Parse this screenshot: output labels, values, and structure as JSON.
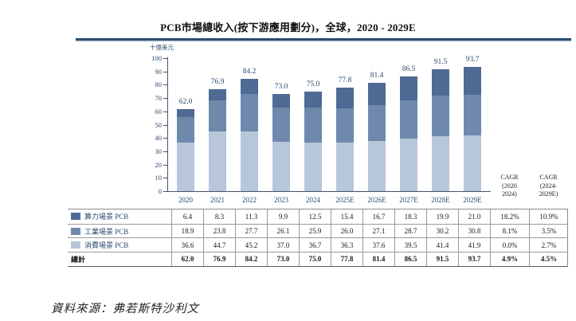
{
  "title": "PCB市場總收入(按下游應用劃分)，全球，2020 - 2029E",
  "source": "資料來源：弗若斯特沙利文",
  "chart_data": {
    "type": "bar",
    "stacked": true,
    "title": "PCB市場總收入(按下游應用劃分)，全球，2020 - 2029E",
    "ylabel": "十億美元",
    "ylim": [
      0,
      100
    ],
    "yticks": [
      0,
      10,
      20,
      30,
      40,
      50,
      60,
      70,
      80,
      90,
      100
    ],
    "grid": false,
    "legend_position": "table-left",
    "categories": [
      "2020",
      "2021",
      "2022",
      "2023",
      "2024",
      "2025E",
      "2026E",
      "2027E",
      "2028E",
      "2029E"
    ],
    "series": [
      {
        "name": "消費場景 PCB",
        "color": "#B8C6D9",
        "values": [
          36.6,
          44.7,
          45.2,
          37.0,
          36.7,
          36.3,
          37.6,
          39.5,
          41.4,
          41.9
        ]
      },
      {
        "name": "工業場景 PCB",
        "color": "#6E89AC",
        "values": [
          18.9,
          23.8,
          27.7,
          26.1,
          25.9,
          26.0,
          27.1,
          28.7,
          30.2,
          30.8
        ]
      },
      {
        "name": "算力場景 PCB",
        "color": "#4F6A94",
        "values": [
          6.4,
          8.3,
          11.3,
          9.9,
          12.5,
          15.4,
          16.7,
          18.3,
          19.9,
          21.0
        ]
      }
    ],
    "total_labels": [
      "62.0",
      "76.9",
      "84.2",
      "73.0",
      "75.0",
      "77.8",
      "81.4",
      "86.5",
      "91.5",
      "93.7"
    ]
  },
  "cagr_headers": [
    {
      "lines": [
        "CAGR",
        "(2020",
        "2024)"
      ]
    },
    {
      "lines": [
        "CAGR",
        "(2024-",
        "2029E)"
      ]
    }
  ],
  "table": {
    "rows": [
      {
        "label": "算力場景 PCB",
        "swatch": "#4F6A94",
        "bold": false,
        "values": [
          "6.4",
          "8.3",
          "11.3",
          "9.9",
          "12.5",
          "15.4",
          "16.7",
          "18.3",
          "19.9",
          "21.0",
          "18.2%",
          "10.9%"
        ]
      },
      {
        "label": "工業場景 PCB",
        "swatch": "#6E89AC",
        "bold": false,
        "values": [
          "18.9",
          "23.8",
          "27.7",
          "26.1",
          "25.9",
          "26.0",
          "27.1",
          "28.7",
          "30.2",
          "30.8",
          "8.1%",
          "3.5%"
        ]
      },
      {
        "label": "消費場景 PCB",
        "swatch": "#B8C6D9",
        "bold": false,
        "values": [
          "36.6",
          "44.7",
          "45.2",
          "37.0",
          "36.7",
          "36.3",
          "37.6",
          "39.5",
          "41.4",
          "41.9",
          "0.0%",
          "2.7%"
        ]
      },
      {
        "label": "總計",
        "swatch": null,
        "bold": true,
        "values": [
          "62.0",
          "76.9",
          "84.2",
          "73.0",
          "75.0",
          "77.8",
          "81.4",
          "86.5",
          "91.5",
          "93.7",
          "4.9%",
          "4.5%"
        ]
      }
    ]
  }
}
